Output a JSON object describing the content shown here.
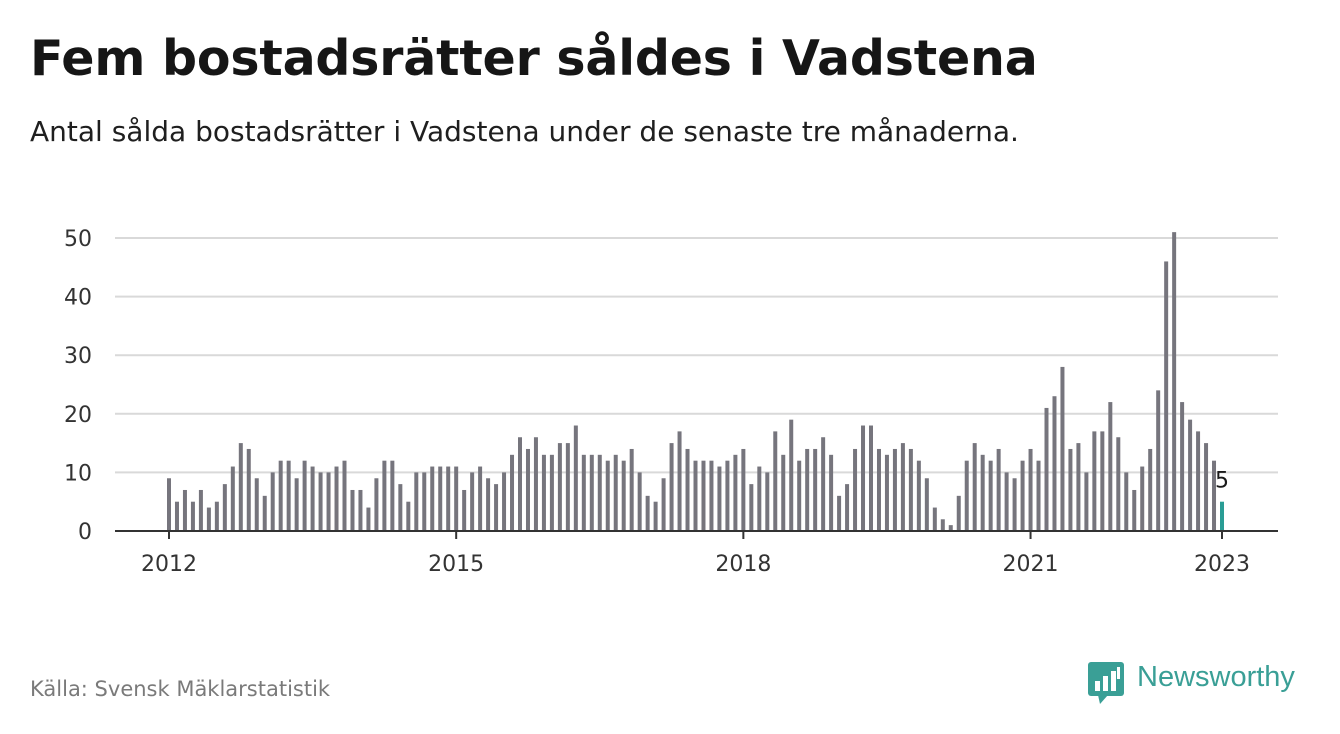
{
  "header": {
    "title": "Fem bostadsrätter såldes i Vadstena",
    "subtitle": "Antal sålda bostadsrätter i Vadstena under de senaste tre månaderna."
  },
  "footer": {
    "source": "Källa: Svensk Mäklarstatistik",
    "brand": "Newsworthy",
    "brand_icon": "bar-chart-icon"
  },
  "colors": {
    "bar": "#76757d",
    "highlight": "#2a9d95",
    "grid": "#d9d9d9",
    "axis": "#333333",
    "brand": "#3a9f96"
  },
  "chart_data": {
    "type": "bar",
    "x_ticks": [
      "2012",
      "2015",
      "2018",
      "2021",
      "2023"
    ],
    "y_ticks": [
      0,
      10,
      20,
      30,
      40,
      50
    ],
    "ylim": [
      0,
      52
    ],
    "grid": true,
    "start": "2012-01",
    "end": "2023-01",
    "values": [
      9,
      5,
      7,
      5,
      7,
      4,
      5,
      8,
      11,
      15,
      14,
      9,
      6,
      10,
      12,
      12,
      9,
      12,
      11,
      10,
      10,
      11,
      12,
      7,
      7,
      4,
      9,
      12,
      12,
      8,
      5,
      10,
      10,
      11,
      11,
      11,
      11,
      7,
      10,
      11,
      9,
      8,
      10,
      13,
      16,
      14,
      16,
      13,
      13,
      15,
      15,
      18,
      13,
      13,
      13,
      12,
      13,
      12,
      14,
      10,
      6,
      5,
      9,
      15,
      17,
      14,
      12,
      12,
      12,
      11,
      12,
      13,
      14,
      8,
      11,
      10,
      17,
      13,
      19,
      12,
      14,
      14,
      16,
      13,
      6,
      8,
      14,
      18,
      18,
      14,
      13,
      14,
      15,
      14,
      12,
      9,
      4,
      2,
      1,
      6,
      12,
      15,
      13,
      12,
      14,
      10,
      9,
      12,
      14,
      12,
      21,
      23,
      28,
      14,
      15,
      10,
      17,
      17,
      22,
      16,
      10,
      7,
      11,
      14,
      24,
      46,
      51,
      22,
      19,
      17,
      15,
      12,
      5
    ],
    "highlight_label": "5"
  }
}
